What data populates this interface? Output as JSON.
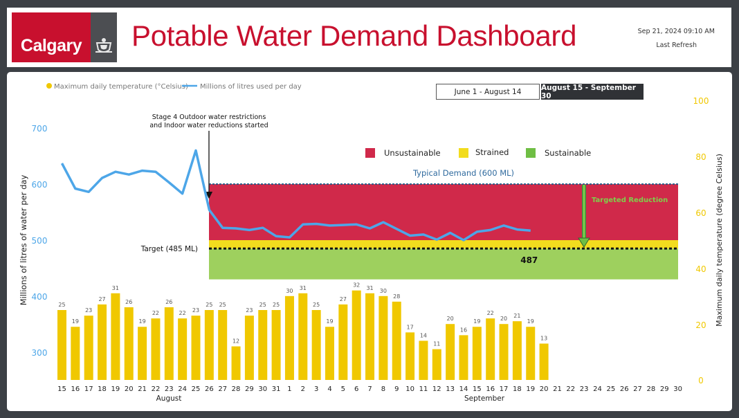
{
  "header": {
    "logo_text": "Calgary",
    "title": "Potable Water Demand Dashboard",
    "refresh_datetime": "Sep 21, 2024 09:10 AM",
    "refresh_label": "Last Refresh"
  },
  "tabs": [
    {
      "label": "June 1 - August 14",
      "active": false
    },
    {
      "label": "August 15 - September 30",
      "active": true
    }
  ],
  "chart_data": {
    "type": "bar+line",
    "legend": [
      {
        "label": "Maximum daily temperature (°Celsius)",
        "color": "#f0c800"
      },
      {
        "label": "Millions of litres used per day",
        "color": "#4da6e8"
      }
    ],
    "zone_legend": [
      {
        "label": "Unsustainable",
        "color": "#d0294a"
      },
      {
        "label": "Strained",
        "color": "#f2dc1e"
      },
      {
        "label": "Sustainable",
        "color": "#9ed05e"
      }
    ],
    "ylabel_left": "Millions of litres of water per day",
    "ylabel_right": "Maximum daily temperature (degree Celsius)",
    "left_ticks": [
      "700",
      "600",
      "500",
      "400",
      "300"
    ],
    "right_ticks": [
      "100",
      "80",
      "60",
      "40",
      "20",
      "0"
    ],
    "ylim_left": [
      250,
      740
    ],
    "ylim_right": [
      0,
      100
    ],
    "x_labels": [
      "15",
      "16",
      "17",
      "18",
      "19",
      "20",
      "21",
      "22",
      "23",
      "24",
      "25",
      "26",
      "27",
      "28",
      "29",
      "30",
      "31",
      "1",
      "2",
      "3",
      "4",
      "5",
      "6",
      "7",
      "8",
      "9",
      "10",
      "11",
      "12",
      "13",
      "14",
      "15",
      "16",
      "17",
      "18",
      "19",
      "20",
      "21",
      "22",
      "23",
      "24",
      "25",
      "26",
      "27",
      "28",
      "29",
      "30"
    ],
    "month_labels": [
      "August",
      "September"
    ],
    "temperatures": [
      25,
      19,
      23,
      27,
      31,
      26,
      19,
      22,
      26,
      22,
      23,
      25,
      25,
      12,
      23,
      25,
      25,
      30,
      31,
      25,
      19,
      27,
      32,
      31,
      30,
      28,
      17,
      14,
      11,
      20,
      16,
      19,
      22,
      20,
      21,
      19,
      13
    ],
    "water_use": [
      637,
      592,
      586,
      611,
      622,
      617,
      624,
      622,
      603,
      583,
      660,
      554,
      522,
      521,
      518,
      522,
      507,
      505,
      528,
      529,
      526,
      527,
      528,
      521,
      532,
      520,
      508,
      510,
      501,
      513,
      500,
      515,
      518,
      526,
      519,
      517
    ],
    "zones": {
      "unsustainable": [
        500,
        600
      ],
      "strained": [
        485,
        500
      ],
      "sustainable": [
        430,
        485
      ]
    },
    "typical_demand": {
      "value": 600,
      "label": "Typical Demand (600 ML)"
    },
    "target": {
      "value": 485,
      "label": "Target (485 ML)"
    },
    "current_value_label": "487",
    "targeted_reduction_label": "Targeted Reduction",
    "annotation": [
      "Stage 4 Outdoor water restrictions",
      "and Indoor water reductions started"
    ]
  }
}
